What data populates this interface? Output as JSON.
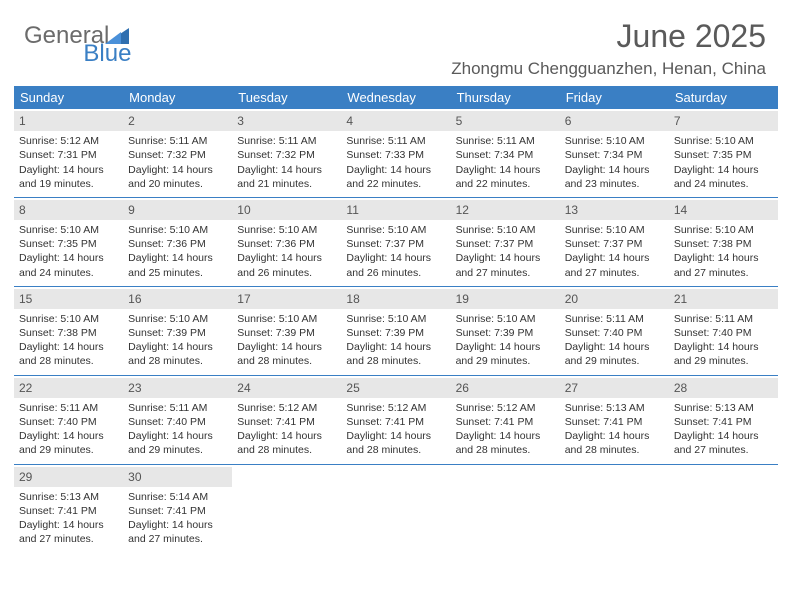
{
  "brand": {
    "part1": "General",
    "part2": "Blue"
  },
  "title": "June 2025",
  "location": "Zhongmu Chengguanzhen, Henan, China",
  "colors": {
    "header_bar": "#3a7fc4",
    "daynum_bg": "#e7e7e7",
    "page_bg": "#ffffff",
    "text": "#333333",
    "muted": "#5a5a5a"
  },
  "layout": {
    "type": "calendar",
    "columns": 7,
    "rows": 5,
    "cell_font_size": 10.5,
    "header_font_size": 13,
    "title_font_size": 32,
    "location_font_size": 17
  },
  "day_names": [
    "Sunday",
    "Monday",
    "Tuesday",
    "Wednesday",
    "Thursday",
    "Friday",
    "Saturday"
  ],
  "days": [
    {
      "n": 1,
      "sr": "5:12 AM",
      "ss": "7:31 PM",
      "dl": "14 hours and 19 minutes."
    },
    {
      "n": 2,
      "sr": "5:11 AM",
      "ss": "7:32 PM",
      "dl": "14 hours and 20 minutes."
    },
    {
      "n": 3,
      "sr": "5:11 AM",
      "ss": "7:32 PM",
      "dl": "14 hours and 21 minutes."
    },
    {
      "n": 4,
      "sr": "5:11 AM",
      "ss": "7:33 PM",
      "dl": "14 hours and 22 minutes."
    },
    {
      "n": 5,
      "sr": "5:11 AM",
      "ss": "7:34 PM",
      "dl": "14 hours and 22 minutes."
    },
    {
      "n": 6,
      "sr": "5:10 AM",
      "ss": "7:34 PM",
      "dl": "14 hours and 23 minutes."
    },
    {
      "n": 7,
      "sr": "5:10 AM",
      "ss": "7:35 PM",
      "dl": "14 hours and 24 minutes."
    },
    {
      "n": 8,
      "sr": "5:10 AM",
      "ss": "7:35 PM",
      "dl": "14 hours and 24 minutes."
    },
    {
      "n": 9,
      "sr": "5:10 AM",
      "ss": "7:36 PM",
      "dl": "14 hours and 25 minutes."
    },
    {
      "n": 10,
      "sr": "5:10 AM",
      "ss": "7:36 PM",
      "dl": "14 hours and 26 minutes."
    },
    {
      "n": 11,
      "sr": "5:10 AM",
      "ss": "7:37 PM",
      "dl": "14 hours and 26 minutes."
    },
    {
      "n": 12,
      "sr": "5:10 AM",
      "ss": "7:37 PM",
      "dl": "14 hours and 27 minutes."
    },
    {
      "n": 13,
      "sr": "5:10 AM",
      "ss": "7:37 PM",
      "dl": "14 hours and 27 minutes."
    },
    {
      "n": 14,
      "sr": "5:10 AM",
      "ss": "7:38 PM",
      "dl": "14 hours and 27 minutes."
    },
    {
      "n": 15,
      "sr": "5:10 AM",
      "ss": "7:38 PM",
      "dl": "14 hours and 28 minutes."
    },
    {
      "n": 16,
      "sr": "5:10 AM",
      "ss": "7:39 PM",
      "dl": "14 hours and 28 minutes."
    },
    {
      "n": 17,
      "sr": "5:10 AM",
      "ss": "7:39 PM",
      "dl": "14 hours and 28 minutes."
    },
    {
      "n": 18,
      "sr": "5:10 AM",
      "ss": "7:39 PM",
      "dl": "14 hours and 28 minutes."
    },
    {
      "n": 19,
      "sr": "5:10 AM",
      "ss": "7:39 PM",
      "dl": "14 hours and 29 minutes."
    },
    {
      "n": 20,
      "sr": "5:11 AM",
      "ss": "7:40 PM",
      "dl": "14 hours and 29 minutes."
    },
    {
      "n": 21,
      "sr": "5:11 AM",
      "ss": "7:40 PM",
      "dl": "14 hours and 29 minutes."
    },
    {
      "n": 22,
      "sr": "5:11 AM",
      "ss": "7:40 PM",
      "dl": "14 hours and 29 minutes."
    },
    {
      "n": 23,
      "sr": "5:11 AM",
      "ss": "7:40 PM",
      "dl": "14 hours and 29 minutes."
    },
    {
      "n": 24,
      "sr": "5:12 AM",
      "ss": "7:41 PM",
      "dl": "14 hours and 28 minutes."
    },
    {
      "n": 25,
      "sr": "5:12 AM",
      "ss": "7:41 PM",
      "dl": "14 hours and 28 minutes."
    },
    {
      "n": 26,
      "sr": "5:12 AM",
      "ss": "7:41 PM",
      "dl": "14 hours and 28 minutes."
    },
    {
      "n": 27,
      "sr": "5:13 AM",
      "ss": "7:41 PM",
      "dl": "14 hours and 28 minutes."
    },
    {
      "n": 28,
      "sr": "5:13 AM",
      "ss": "7:41 PM",
      "dl": "14 hours and 27 minutes."
    },
    {
      "n": 29,
      "sr": "5:13 AM",
      "ss": "7:41 PM",
      "dl": "14 hours and 27 minutes."
    },
    {
      "n": 30,
      "sr": "5:14 AM",
      "ss": "7:41 PM",
      "dl": "14 hours and 27 minutes."
    }
  ],
  "labels": {
    "sunrise": "Sunrise:",
    "sunset": "Sunset:",
    "daylight": "Daylight:"
  },
  "start_offset": 0
}
